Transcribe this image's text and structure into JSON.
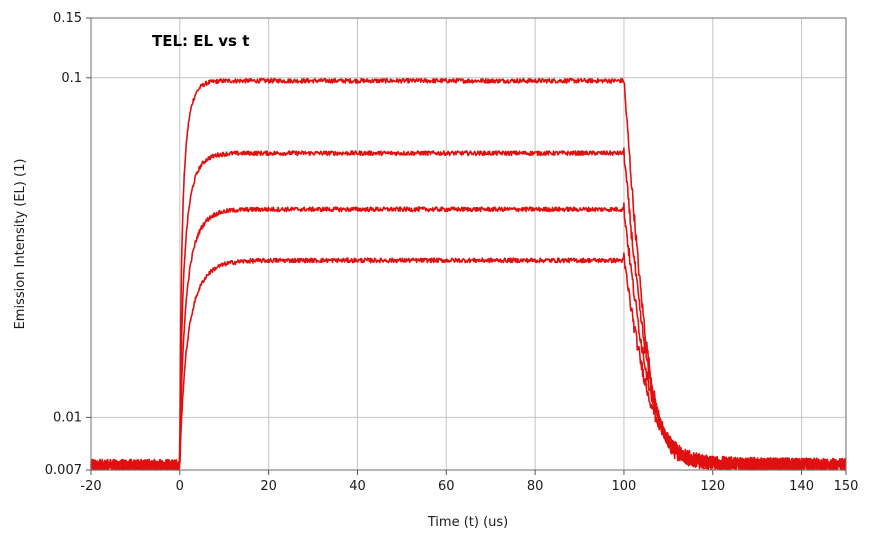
{
  "chart_data": {
    "type": "line",
    "title": "TEL: EL vs t",
    "xlabel": "Time (t) (us)",
    "ylabel": "Emission Intensity (EL) (1)",
    "xlim": [
      -20,
      150
    ],
    "ylim": [
      0.007,
      0.15
    ],
    "yscale": "log",
    "x_ticks": [
      -20,
      0,
      20,
      40,
      60,
      80,
      100,
      120,
      140,
      150
    ],
    "y_ticks": [
      0.007,
      0.01,
      0.1,
      0.15
    ],
    "x_tick_labels": [
      "-20",
      "0",
      "20",
      "40",
      "60",
      "80",
      "100",
      "120",
      "140",
      "150"
    ],
    "y_tick_labels": [
      "0.007",
      "0.01",
      "0.1",
      "0.15"
    ],
    "grid": true,
    "line_color": "#e01010",
    "baseline": 0.0072,
    "pulse_on": 0,
    "pulse_off": 100,
    "series": [
      {
        "plateau": 0.098,
        "rise_tau": 1.5,
        "fall_tau": 2.2
      },
      {
        "plateau": 0.06,
        "rise_tau": 2.0,
        "fall_tau": 2.6
      },
      {
        "plateau": 0.041,
        "rise_tau": 2.5,
        "fall_tau": 3.0
      },
      {
        "plateau": 0.029,
        "rise_tau": 3.0,
        "fall_tau": 3.4
      }
    ]
  }
}
